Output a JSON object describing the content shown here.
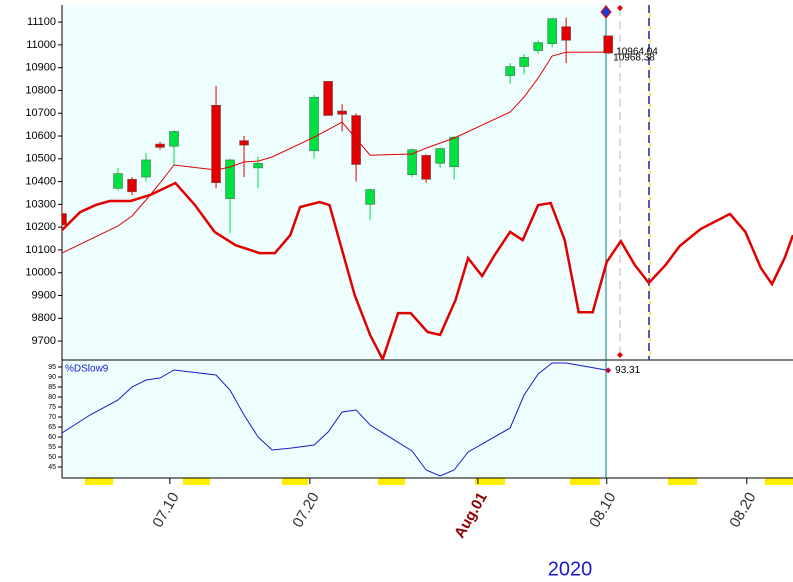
{
  "chart_data": [
    {
      "type": "candlestick",
      "candles": {
        "x": [
          0,
          4,
          5,
          6,
          7,
          8,
          11,
          12,
          13,
          14,
          18,
          19,
          20,
          21,
          22,
          25,
          26,
          27,
          28,
          32,
          33,
          34,
          35,
          36,
          39
        ],
        "open": [
          10260,
          10370,
          10410,
          10420,
          10565,
          10555,
          10735,
          10325,
          10580,
          10460,
          10535,
          10840,
          10710,
          10690,
          10300,
          10430,
          10515,
          10480,
          10465,
          10865,
          10905,
          10975,
          11005,
          11080,
          11040
        ],
        "high": [
          10300,
          10460,
          10420,
          10525,
          10575,
          10625,
          10820,
          10500,
          10600,
          10510,
          10780,
          10840,
          10740,
          10700,
          10370,
          10545,
          10520,
          10550,
          10600,
          10920,
          10960,
          11020,
          11120,
          11120,
          11040
        ],
        "low": [
          10180,
          10360,
          10340,
          10400,
          10540,
          10470,
          10370,
          10174,
          10420,
          10370,
          10500,
          10690,
          10620,
          10400,
          10230,
          10420,
          10395,
          10460,
          10410,
          10830,
          10870,
          10960,
          10990,
          10920,
          10960
        ],
        "close": [
          10210,
          10435,
          10355,
          10495,
          10550,
          10620,
          10395,
          10495,
          10560,
          10480,
          10770,
          10690,
          10695,
          10475,
          10365,
          10540,
          10410,
          10545,
          10595,
          10905,
          10945,
          11010,
          11115,
          11020,
          10964.04
        ],
        "up_color": "#00e040",
        "down_color": "#e00000"
      },
      "lines": [
        {
          "color": "#e00000",
          "width": 1,
          "x": [
            0,
            4,
            5,
            6,
            7,
            8,
            11,
            12,
            13,
            14,
            15,
            18,
            20,
            22,
            25,
            26,
            28,
            32,
            33,
            34,
            35,
            36,
            39
          ],
          "values": [
            10086,
            10205,
            10249,
            10319,
            10394,
            10473,
            10451,
            10464,
            10486,
            10490,
            10508,
            10595,
            10661,
            10516,
            10521,
            10547,
            10591,
            10705,
            10771,
            10854,
            10951,
            10968,
            10968.38
          ]
        },
        {
          "color": "#e00000",
          "width": 2.5,
          "x": [
            0,
            1.3,
            2.4,
            3.4,
            4.9,
            6.3,
            8.1,
            9.5,
            10.9,
            12.4,
            14.1,
            15.2,
            16.3,
            17,
            18.4,
            19.1,
            19.9,
            20.9,
            22,
            22.9,
            24,
            24.9,
            26.1,
            27,
            28.1,
            29,
            30,
            30.9,
            32,
            32.9,
            34,
            34.9,
            35.9,
            36.9,
            37.9,
            38.9,
            39.9,
            40.9,
            41.9,
            43.1,
            44.1,
            45.6,
            47.7,
            48.8,
            49.9,
            50.7,
            51.6,
            52.2
          ],
          "values": [
            10187,
            10266,
            10297,
            10315,
            10315,
            10341,
            10394,
            10297,
            10179,
            10121,
            10086,
            10086,
            10165,
            10288,
            10310,
            10297,
            10121,
            9902,
            9727,
            9620,
            9823,
            9823,
            9740,
            9727,
            9880,
            10064,
            9985,
            10078,
            10179,
            10143,
            10297,
            10306,
            10143,
            9827,
            9827,
            10047,
            10139,
            10034,
            9955,
            10034,
            10117,
            10192,
            10258,
            10179,
            10021,
            9950,
            10064,
            10165
          ]
        }
      ],
      "xlim": [
        0,
        52.2
      ],
      "ylim": [
        9617,
        11175
      ],
      "yticks": [
        9700,
        9800,
        9900,
        10000,
        10100,
        10200,
        10300,
        10400,
        10500,
        10600,
        10700,
        10800,
        10900,
        11000,
        11100
      ]
    },
    {
      "type": "line",
      "series": [
        {
          "name": "%DSlow9",
          "color": "#1a1acc",
          "x": [
            0,
            2,
            4,
            5,
            6,
            7,
            8,
            11,
            12,
            13,
            14,
            15,
            16.4,
            18,
            19,
            20,
            21,
            22,
            25,
            26,
            27,
            28,
            29,
            32,
            33,
            34,
            35,
            36,
            39
          ],
          "values": [
            62,
            71,
            78.5,
            85,
            88.5,
            89.5,
            93.5,
            91,
            83.5,
            71,
            60,
            53.5,
            54.5,
            56,
            62.5,
            72.5,
            73.5,
            66,
            53,
            43.5,
            40.5,
            43.5,
            52.5,
            64.5,
            81,
            91.5,
            97,
            97,
            93.31
          ]
        }
      ],
      "xlim": [
        0,
        52.2
      ],
      "ylim": [
        39.5,
        97.5
      ],
      "yticks": [
        45,
        50,
        55,
        60,
        65,
        70,
        75,
        80,
        85,
        90,
        95
      ],
      "xticks": [
        {
          "value": 7.7,
          "label": "07.10"
        },
        {
          "value": 17.7,
          "label": "07.20"
        },
        {
          "value": 29.7,
          "label": "Aug.01"
        },
        {
          "value": 38.9,
          "label": "08.10"
        },
        {
          "value": 48.9,
          "label": "08.20"
        }
      ],
      "year_label": "2020"
    }
  ]
}
